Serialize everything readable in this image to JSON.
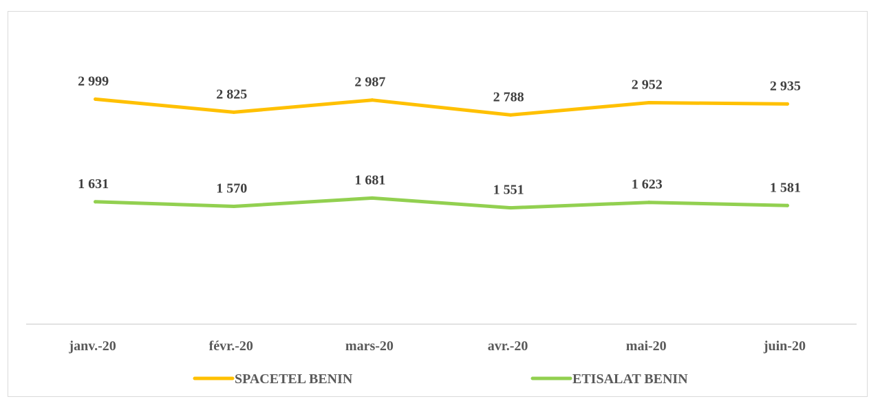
{
  "chart_data": {
    "type": "line",
    "categories": [
      "janv.-20",
      "févr.-20",
      "mars-20",
      "avr.-20",
      "mai-20",
      "juin-20"
    ],
    "series": [
      {
        "name": "SPACETEL BENIN",
        "color": "#FFC000",
        "values": [
          2999,
          2825,
          2987,
          2788,
          2952,
          2935
        ],
        "labels": [
          "2 999",
          "2 825",
          "2 987",
          "2 788",
          "2 952",
          "2 935"
        ]
      },
      {
        "name": "ETISALAT BENIN",
        "color": "#92D050",
        "values": [
          1631,
          1570,
          1681,
          1551,
          1623,
          1581
        ],
        "labels": [
          "1 631",
          "1 570",
          "1 681",
          "1 551",
          "1 623",
          "1 581"
        ]
      }
    ],
    "title": "",
    "xlabel": "",
    "ylabel": "",
    "ylim": [
      0,
      4000
    ],
    "grid": false,
    "legend_position": "bottom"
  }
}
